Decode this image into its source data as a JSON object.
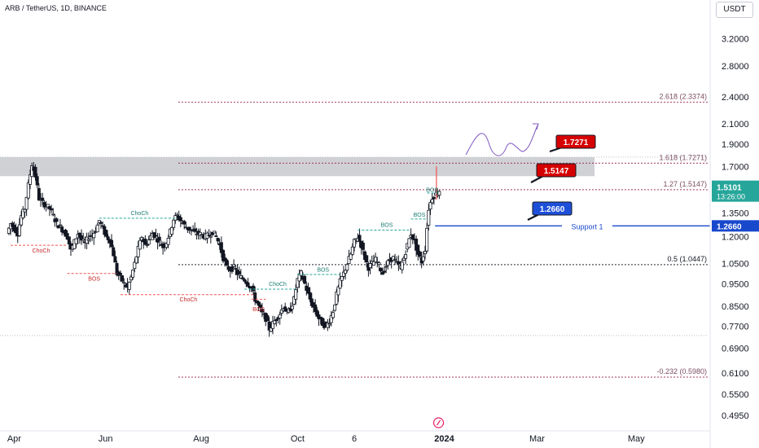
{
  "header": {
    "symbol_title": "ARB / TetherUS, 1D, BINANCE",
    "currency": "USDT"
  },
  "colors": {
    "up": "#26a69a",
    "down": "#ef5350",
    "candle": "#131722",
    "fib": "#9c2a4f",
    "support": "#1848cc",
    "label_red": "#d50000",
    "label_blue": "#1e4fd8",
    "zone": "#c8c9cc",
    "arrow": "#7e57c2"
  },
  "chart_data": {
    "type": "candlestick",
    "y_scale": "log",
    "ylim": [
      0.46,
      3.55
    ],
    "y_ticks": [
      "3.2000",
      "2.8000",
      "2.4000",
      "2.1000",
      "1.9000",
      "1.7000",
      "1.5000",
      "1.3500",
      "1.2000",
      "1.0500",
      "0.9500",
      "0.8500",
      "0.7700",
      "0.6900",
      "0.6100",
      "0.5500",
      "0.4950"
    ],
    "x_ticks": [
      {
        "label": "Apr",
        "t": 0.02
      },
      {
        "label": "Jun",
        "t": 0.149
      },
      {
        "label": "Aug",
        "t": 0.284
      },
      {
        "label": "Oct",
        "t": 0.42
      },
      {
        "label": "6",
        "t": 0.5
      },
      {
        "label": "2024",
        "t": 0.627
      },
      {
        "label": "Mar",
        "t": 0.758
      },
      {
        "label": "May",
        "t": 0.898
      }
    ],
    "price_path": [
      [
        0.01,
        1.22
      ],
      [
        0.015,
        1.28
      ],
      [
        0.02,
        1.25
      ],
      [
        0.025,
        1.22
      ],
      [
        0.03,
        1.33
      ],
      [
        0.035,
        1.38
      ],
      [
        0.04,
        1.55
      ],
      [
        0.045,
        1.72
      ],
      [
        0.05,
        1.62
      ],
      [
        0.055,
        1.45
      ],
      [
        0.06,
        1.42
      ],
      [
        0.065,
        1.4
      ],
      [
        0.07,
        1.38
      ],
      [
        0.075,
        1.33
      ],
      [
        0.08,
        1.28
      ],
      [
        0.085,
        1.26
      ],
      [
        0.09,
        1.23
      ],
      [
        0.095,
        1.2
      ],
      [
        0.1,
        1.12
      ],
      [
        0.105,
        1.17
      ],
      [
        0.11,
        1.22
      ],
      [
        0.115,
        1.18
      ],
      [
        0.12,
        1.16
      ],
      [
        0.125,
        1.2
      ],
      [
        0.13,
        1.21
      ],
      [
        0.135,
        1.24
      ],
      [
        0.14,
        1.3
      ],
      [
        0.145,
        1.25
      ],
      [
        0.15,
        1.2
      ],
      [
        0.155,
        1.18
      ],
      [
        0.16,
        1.1
      ],
      [
        0.165,
        1.0
      ],
      [
        0.17,
        0.98
      ],
      [
        0.175,
        0.95
      ],
      [
        0.18,
        0.93
      ],
      [
        0.185,
        0.98
      ],
      [
        0.19,
        1.05
      ],
      [
        0.195,
        1.13
      ],
      [
        0.2,
        1.2
      ],
      [
        0.205,
        1.15
      ],
      [
        0.21,
        1.18
      ],
      [
        0.215,
        1.22
      ],
      [
        0.22,
        1.2
      ],
      [
        0.225,
        1.17
      ],
      [
        0.23,
        1.14
      ],
      [
        0.235,
        1.17
      ],
      [
        0.24,
        1.23
      ],
      [
        0.245,
        1.31
      ],
      [
        0.25,
        1.33
      ],
      [
        0.255,
        1.3
      ],
      [
        0.26,
        1.27
      ],
      [
        0.265,
        1.25
      ],
      [
        0.27,
        1.24
      ],
      [
        0.275,
        1.22
      ],
      [
        0.28,
        1.22
      ],
      [
        0.285,
        1.21
      ],
      [
        0.29,
        1.2
      ],
      [
        0.295,
        1.21
      ],
      [
        0.3,
        1.23
      ],
      [
        0.305,
        1.2
      ],
      [
        0.31,
        1.15
      ],
      [
        0.315,
        1.08
      ],
      [
        0.32,
        1.03
      ],
      [
        0.325,
        1.02
      ],
      [
        0.33,
        1.03
      ],
      [
        0.335,
        1.0
      ],
      [
        0.34,
        0.98
      ],
      [
        0.345,
        0.97
      ],
      [
        0.35,
        0.95
      ],
      [
        0.355,
        0.93
      ],
      [
        0.36,
        0.88
      ],
      [
        0.365,
        0.85
      ],
      [
        0.37,
        0.82
      ],
      [
        0.375,
        0.8
      ],
      [
        0.38,
        0.76
      ],
      [
        0.385,
        0.78
      ],
      [
        0.39,
        0.8
      ],
      [
        0.395,
        0.82
      ],
      [
        0.4,
        0.85
      ],
      [
        0.405,
        0.82
      ],
      [
        0.41,
        0.84
      ],
      [
        0.415,
        0.88
      ],
      [
        0.42,
        0.97
      ],
      [
        0.425,
        1.0
      ],
      [
        0.43,
        0.95
      ],
      [
        0.435,
        0.9
      ],
      [
        0.44,
        0.86
      ],
      [
        0.445,
        0.83
      ],
      [
        0.45,
        0.8
      ],
      [
        0.455,
        0.78
      ],
      [
        0.46,
        0.77
      ],
      [
        0.465,
        0.79
      ],
      [
        0.47,
        0.83
      ],
      [
        0.475,
        0.9
      ],
      [
        0.48,
        0.96
      ],
      [
        0.485,
        1.0
      ],
      [
        0.49,
        1.05
      ],
      [
        0.495,
        1.1
      ],
      [
        0.5,
        1.17
      ],
      [
        0.505,
        1.2
      ],
      [
        0.51,
        1.15
      ],
      [
        0.515,
        1.08
      ],
      [
        0.52,
        1.03
      ],
      [
        0.525,
        1.05
      ],
      [
        0.53,
        1.07
      ],
      [
        0.535,
        1.04
      ],
      [
        0.54,
        1.0
      ],
      [
        0.545,
        1.04
      ],
      [
        0.55,
        1.07
      ],
      [
        0.555,
        1.08
      ],
      [
        0.56,
        1.05
      ],
      [
        0.565,
        1.03
      ],
      [
        0.57,
        1.08
      ],
      [
        0.575,
        1.15
      ],
      [
        0.58,
        1.22
      ],
      [
        0.585,
        1.17
      ],
      [
        0.59,
        1.1
      ],
      [
        0.595,
        1.06
      ],
      [
        0.6,
        1.13
      ],
      [
        0.605,
        1.38
      ],
      [
        0.61,
        1.46
      ],
      [
        0.615,
        1.48
      ],
      [
        0.62,
        1.51
      ]
    ],
    "levels": [
      {
        "label": "2.618 (2.3374)",
        "price": 2.3374,
        "style": "fib"
      },
      {
        "label": "1.618 (1.7271)",
        "price": 1.7271,
        "style": "fib"
      },
      {
        "label": "1.27 (1.5147)",
        "price": 1.5147,
        "style": "fib"
      },
      {
        "label": "0.5 (1.0447)",
        "price": 1.0447,
        "style": "black"
      },
      {
        "label": "-0.232 (0.5980)",
        "price": 0.598,
        "style": "fib"
      }
    ],
    "support": {
      "label": "Support 1",
      "price": 1.266,
      "price_label": "1.2660"
    },
    "current_price": {
      "value": "1.5101",
      "countdown": "13:26:00",
      "price": 1.5101
    },
    "callouts": [
      {
        "text": "1.7271",
        "price": 1.7271,
        "color": "red"
      },
      {
        "text": "1.5147",
        "price": 1.5147,
        "color": "red"
      },
      {
        "text": "1.2660",
        "price": 1.266,
        "color": "blue"
      }
    ],
    "zone": {
      "top": 1.78,
      "bottom": 1.62
    },
    "structure_labels": [
      {
        "text": "ChoCh",
        "kind": "down"
      },
      {
        "text": "BOS",
        "kind": "down"
      },
      {
        "text": "ChoCh",
        "kind": "up"
      },
      {
        "text": "ChoCh",
        "kind": "down"
      },
      {
        "text": "BOS",
        "kind": "down"
      },
      {
        "text": "ChoCh",
        "kind": "up"
      },
      {
        "text": "BOS",
        "kind": "up"
      },
      {
        "text": "BOS",
        "kind": "up"
      },
      {
        "text": "BOS",
        "kind": "up"
      },
      {
        "text": "BOS",
        "kind": "up"
      }
    ]
  }
}
